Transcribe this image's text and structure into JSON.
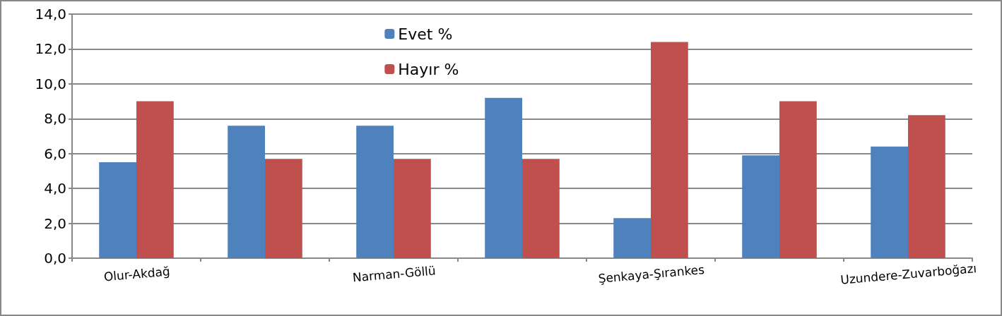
{
  "chart_data": {
    "type": "bar",
    "categories": [
      "Olur-Akdağ",
      null,
      "Narman-Göllü",
      null,
      "Şenkaya-Şırankes",
      null,
      "Uzundere-Zuvarboğazı"
    ],
    "series": [
      {
        "name": "Evet %",
        "color": "#4f81bd",
        "values": [
          5.5,
          7.6,
          7.6,
          9.2,
          2.3,
          5.9,
          6.4
        ]
      },
      {
        "name": "Hayır %",
        "color": "#c0504d",
        "values": [
          9.0,
          5.7,
          5.7,
          5.7,
          12.4,
          9.0,
          8.2
        ]
      }
    ],
    "ylim": [
      0,
      14
    ],
    "yticks": [
      {
        "value": 0,
        "label": "0,0"
      },
      {
        "value": 2,
        "label": "2,0"
      },
      {
        "value": 4,
        "label": "4,0"
      },
      {
        "value": 6,
        "label": "6,0"
      },
      {
        "value": 8,
        "label": "8,0"
      },
      {
        "value": 10,
        "label": "10,0"
      },
      {
        "value": 12,
        "label": "12,0"
      },
      {
        "value": 14,
        "label": "14,0"
      }
    ],
    "grid": "y",
    "legend": "top"
  }
}
